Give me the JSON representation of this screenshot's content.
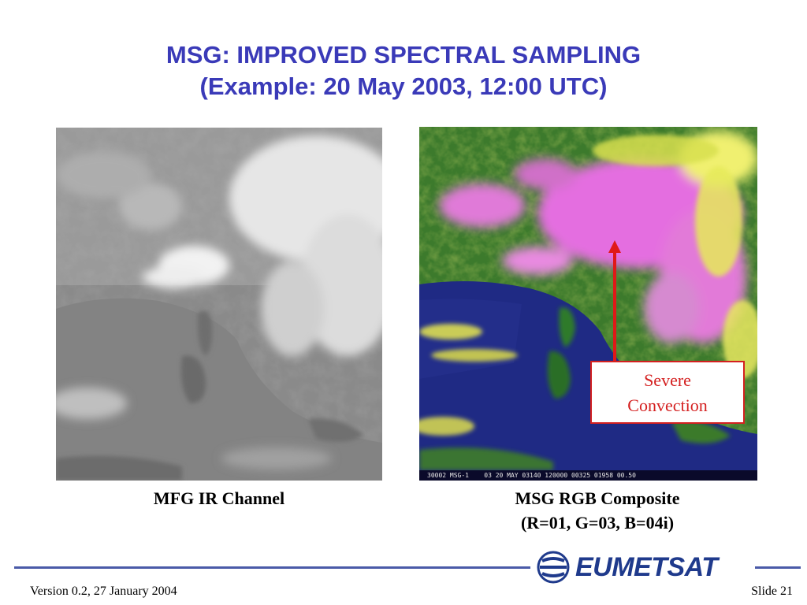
{
  "slide": {
    "title_line1": "MSG: IMPROVED SPECTRAL SAMPLING",
    "title_line2": "(Example: 20 May 2003, 12:00 UTC)",
    "title_color": "#3a3ab8"
  },
  "images": {
    "left": {
      "caption": "MFG IR Channel"
    },
    "right": {
      "caption_line1": "MSG RGB Composite",
      "caption_line2": "(R=01, G=03, B=04i)",
      "stamp_text": "30002 MSG-1    03 20 MAY 03140 120000 00325 01958 00.50"
    }
  },
  "annotation": {
    "line1": "Severe",
    "line2": "Convection",
    "color": "#d42020"
  },
  "footer": {
    "version": "Version 0.2, 27 January 2004",
    "slide_number": "Slide 21"
  },
  "logo": {
    "text": "EUMETSAT",
    "icon": "eumetsat-globe-icon",
    "color": "#1f3a8c"
  },
  "colors": {
    "rule": "#4a5aa8",
    "arrow": "#e01818"
  }
}
